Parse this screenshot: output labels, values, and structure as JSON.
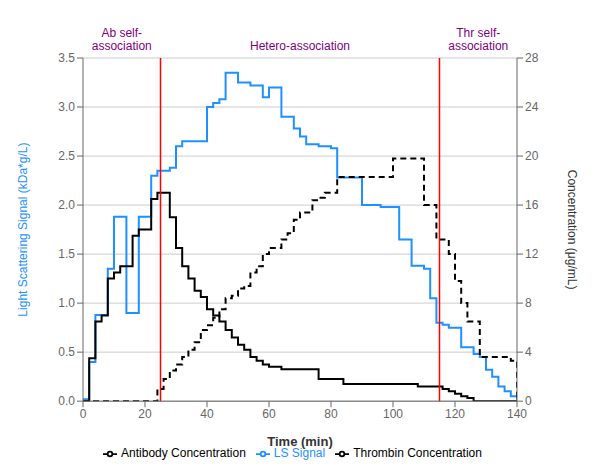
{
  "chart_data": {
    "type": "line",
    "xlabel": "Time (min)",
    "ylabel": "Light Scattering Signal (kDa*g/L)",
    "y2label": "Concentration (μg/mL)",
    "xlim": [
      0,
      140
    ],
    "xticks": [
      0,
      20,
      40,
      60,
      80,
      100,
      120,
      140
    ],
    "ylim": [
      0,
      3.5
    ],
    "yticks": [
      {
        "value": 0,
        "label": "0.0"
      },
      0.5,
      {
        "value": 1,
        "label": "1.0"
      },
      1.5,
      {
        "value": 2,
        "label": "2.0"
      },
      2.5,
      {
        "value": 3,
        "label": "3.0"
      },
      3.5
    ],
    "y2lim": [
      0,
      28
    ],
    "y2ticks": [
      0,
      4,
      8,
      12,
      16,
      20,
      24,
      28
    ],
    "grid": true,
    "legend": "bottom",
    "vlines": [
      {
        "x": 25,
        "color": "red"
      },
      {
        "x": 115,
        "color": "red"
      }
    ],
    "annotations": [
      {
        "text": "Ab self-\nassociation",
        "color": "#800080"
      },
      {
        "text": "Hetero-association",
        "color": "#800080"
      },
      {
        "text": "Thr self-\nassociation",
        "color": "#800080"
      }
    ],
    "x": [
      0,
      2,
      4,
      6,
      8,
      10,
      12,
      14,
      16,
      18,
      20,
      22,
      24,
      26,
      28,
      30,
      32,
      34,
      36,
      38,
      40,
      42,
      44,
      46,
      48,
      50,
      52,
      54,
      56,
      58,
      60,
      62,
      64,
      66,
      68,
      70,
      72,
      74,
      76,
      78,
      80,
      82,
      84,
      86,
      88,
      90,
      92,
      94,
      96,
      98,
      100,
      102,
      104,
      106,
      108,
      110,
      112,
      114,
      116,
      118,
      120,
      122,
      124,
      126,
      128,
      130,
      132,
      134,
      136,
      138,
      140
    ],
    "series": [
      {
        "name": "LS Signal",
        "color": "#1E90FF",
        "line_style": "solid",
        "axis": "y",
        "values": [
          0.02,
          0.4,
          0.88,
          0.88,
          1.35,
          1.88,
          1.88,
          0.9,
          0.9,
          1.88,
          1.88,
          2.3,
          2.35,
          2.35,
          2.38,
          2.6,
          2.65,
          2.65,
          2.65,
          2.65,
          3.0,
          3.04,
          3.08,
          3.35,
          3.35,
          3.25,
          3.25,
          3.22,
          3.22,
          3.1,
          3.2,
          3.2,
          2.9,
          2.9,
          2.78,
          2.7,
          2.62,
          2.62,
          2.6,
          2.6,
          2.58,
          2.28,
          2.28,
          2.28,
          2.28,
          2.0,
          2.0,
          2.0,
          1.98,
          1.98,
          1.98,
          1.65,
          1.65,
          1.38,
          1.38,
          1.35,
          1.05,
          0.8,
          0.78,
          0.75,
          0.75,
          0.55,
          0.55,
          0.48,
          0.45,
          0.32,
          0.25,
          0.15,
          0.1,
          0.05,
          0.0
        ]
      },
      {
        "name": "Thrombin Concentration",
        "color": "black",
        "line_style": "dashed",
        "axis": "y2",
        "values": [
          0,
          0,
          0,
          0,
          0,
          0,
          0,
          0,
          0,
          0,
          0,
          0,
          1.0,
          1.8,
          2.5,
          3.0,
          3.6,
          4.2,
          4.8,
          5.8,
          6.2,
          6.8,
          7.5,
          8.4,
          8.6,
          9.2,
          9.4,
          10.5,
          11.0,
          12.0,
          12.5,
          12.5,
          13.2,
          13.7,
          14.8,
          15.4,
          15.4,
          16.4,
          16.6,
          17.0,
          17.0,
          18.3,
          18.3,
          18.3,
          18.3,
          18.3,
          18.3,
          18.3,
          18.3,
          18.3,
          19.8,
          19.8,
          19.8,
          19.8,
          19.8,
          16.0,
          16.0,
          13.2,
          13.2,
          12.0,
          9.8,
          8.0,
          6.5,
          6.5,
          3.6,
          3.6,
          3.6,
          3.6,
          3.6,
          3.3,
          0.0
        ]
      },
      {
        "name": "Antibody Concentration",
        "color": "black",
        "line_style": "solid",
        "axis": "y2",
        "values": [
          0,
          3.5,
          6.5,
          7.0,
          10.0,
          10.5,
          11.0,
          11.0,
          13.5,
          14.0,
          14.0,
          16.5,
          17.0,
          17.0,
          15.0,
          12.5,
          11.0,
          10.0,
          9.0,
          8.5,
          7.5,
          7.0,
          6.5,
          5.8,
          5.2,
          4.6,
          4.2,
          3.6,
          3.3,
          3.0,
          2.8,
          2.8,
          2.6,
          2.6,
          2.6,
          2.6,
          2.6,
          2.6,
          1.8,
          1.8,
          1.8,
          1.8,
          1.4,
          1.4,
          1.4,
          1.4,
          1.4,
          1.4,
          1.4,
          1.4,
          1.4,
          1.4,
          1.4,
          1.4,
          1.2,
          1.2,
          1.2,
          1.2,
          1.0,
          0.8,
          0.6,
          0.4,
          0.25,
          0.0,
          0.0,
          0.0,
          0.0,
          0.0,
          0.0,
          0.0,
          0.0
        ]
      }
    ]
  }
}
